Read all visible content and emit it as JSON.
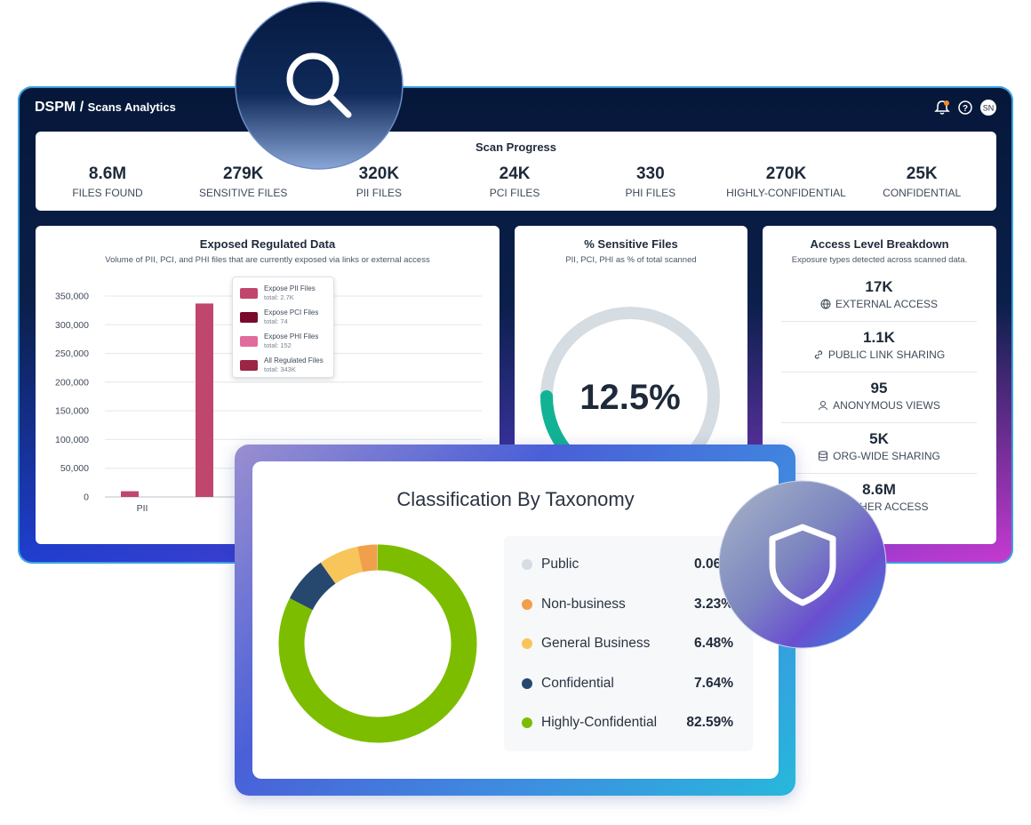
{
  "header": {
    "brand": "DSPM",
    "separator": "/",
    "page": "Scans Analytics",
    "avatar": "SN"
  },
  "scan_progress": {
    "title": "Scan Progress",
    "stats": [
      {
        "value": "8.6M",
        "label": "FILES FOUND"
      },
      {
        "value": "279K",
        "label": "SENSITIVE FILES"
      },
      {
        "value": "320K",
        "label": "PII FILES"
      },
      {
        "value": "24K",
        "label": "PCI FILES"
      },
      {
        "value": "330",
        "label": "PHI FILES"
      },
      {
        "value": "270K",
        "label": "HIGHLY-CONFIDENTIAL"
      },
      {
        "value": "25K",
        "label": "CONFIDENTIAL"
      }
    ]
  },
  "access": {
    "title": "Access Level Breakdown",
    "subtitle": "Exposure types detected across scanned data.",
    "items": [
      {
        "value": "17K",
        "label": "EXTERNAL ACCESS"
      },
      {
        "value": "1.1K",
        "label": "PUBLIC LINK SHARING"
      },
      {
        "value": "95",
        "label": "ANONYMOUS VIEWS"
      },
      {
        "value": "5K",
        "label": "ORG-WIDE SHARING"
      },
      {
        "value": "8.6M",
        "label": "OTHER ACCESS"
      }
    ]
  },
  "chart_data": [
    {
      "type": "bar",
      "title": "Exposed Regulated Data",
      "subtitle": "Volume of PII, PCI, and PHI files that are currently exposed via links or external access",
      "categories": [
        "PII",
        null
      ],
      "values": [
        10000,
        337000
      ],
      "color": "#c0466e",
      "ylim": [
        0,
        350000
      ],
      "yticks": [
        0,
        {
          "value": 50000,
          "label": "50,000"
        },
        {
          "value": 100000,
          "label": "100,000"
        },
        {
          "value": 150000,
          "label": "150,000"
        },
        {
          "value": 200000,
          "label": "200,000"
        },
        {
          "value": 250000,
          "label": "250,000"
        },
        {
          "value": 300000,
          "label": "300,000"
        },
        {
          "value": 350000,
          "label": "350,000"
        }
      ],
      "grid": true,
      "legend": [
        {
          "name": "Expose PII Files",
          "total": "total: 2.7K",
          "color": "#c0466e"
        },
        {
          "name": "Expose PCI Files",
          "total": "total: 74",
          "color": "#7a0a2c"
        },
        {
          "name": "Expose PHI Files",
          "total": "total: 152",
          "color": "#e06c9c"
        },
        {
          "name": "All Regulated Files",
          "total": "total: 343K",
          "color": "#9c2444"
        }
      ]
    },
    {
      "type": "gauge",
      "title": "% Sensitive Files",
      "subtitle": "PII, PCI, PHI as % of total scanned",
      "values": [
        12.5
      ],
      "value_labels": [
        "12.5%"
      ],
      "ylim": [
        0,
        100
      ],
      "color": "#12b394",
      "track_color": "#d5dce2"
    },
    {
      "type": "donut",
      "title": "Classification By Taxonomy",
      "categories": [
        "Public",
        "Non-business",
        "General Business",
        "Confidential",
        "Highly-Confidential"
      ],
      "values": [
        0.06,
        3.23,
        6.48,
        7.64,
        82.59
      ],
      "value_labels": [
        "0.06%",
        "3.23%",
        "6.48%",
        "7.64%",
        "82.59%"
      ],
      "colors": [
        "#d5dde3",
        "#f0a04b",
        "#f7c55a",
        "#27486e",
        "#7dbd00"
      ]
    }
  ]
}
